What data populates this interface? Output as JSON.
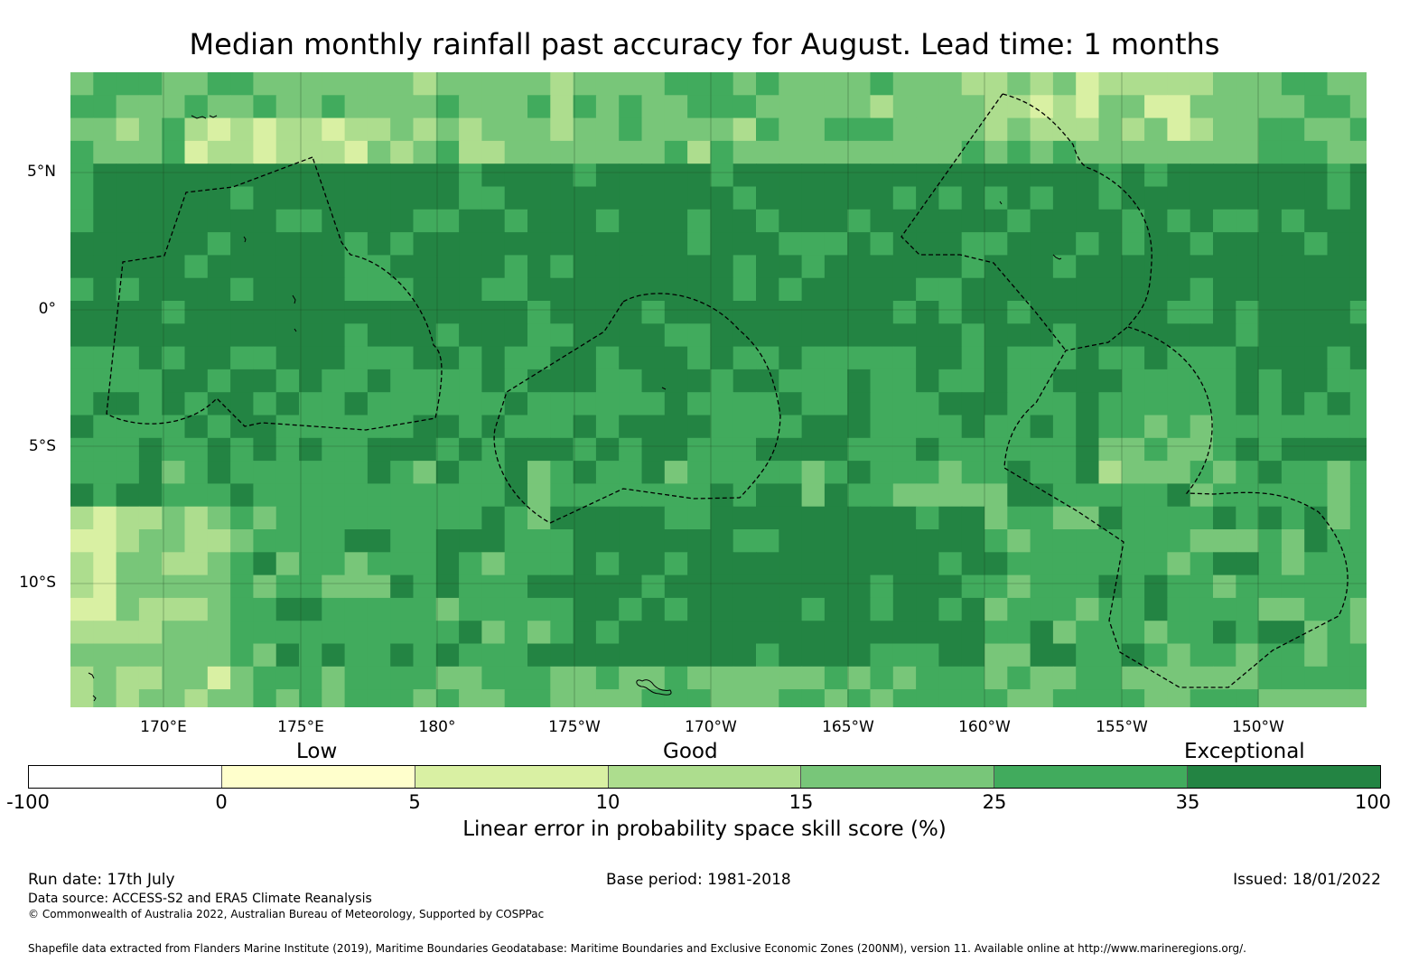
{
  "title": "Median monthly rainfall past accuracy for August. Lead time: 1 months",
  "colors": {
    "bins": [
      "#ffffff",
      "#ffffcc",
      "#d9f0a3",
      "#addd8e",
      "#78c679",
      "#41ab5d",
      "#238443"
    ],
    "border": "#000000"
  },
  "map": {
    "lat_ticks": [
      "5°N",
      "0°",
      "5°S",
      "10°S"
    ],
    "lon_ticks": [
      "170°E",
      "175°E",
      "180°",
      "175°W",
      "170°W",
      "165°W",
      "160°W",
      "155°W",
      "150°W"
    ],
    "lon_range": [
      166.6,
      213.9
    ],
    "lat_range": [
      -14.3,
      8.8
    ],
    "grid_resolution_deg": 0.83,
    "dominant_category": "Exceptional",
    "eez_outlines": [
      "Kiribati (Gilbert Islands)",
      "Kiribati (Phoenix Islands)",
      "Kiribati (Line Islands)",
      "Cook Islands",
      "French Polynesia"
    ]
  },
  "legend": {
    "categories": [
      "Low",
      "Good",
      "Exceptional"
    ],
    "bounds": [
      "-100",
      "0",
      "5",
      "10",
      "15",
      "25",
      "35",
      "100"
    ],
    "title": "Linear error in probability space skill score (%)"
  },
  "footer": {
    "run_date": "Run date: 17th July",
    "base_period": "Base period: 1981-2018",
    "issued": "Issued: 18/01/2022",
    "data_source": "Data source: ACCESS-S2 and ERA5 Climate Reanalysis",
    "copyright": "© Commonwealth of Australia 2022, Australian Bureau of Meteorology, Supported by COSPPac",
    "shapefile": "Shapefile data extracted from Flanders Marine Institute (2019), Maritime Boundaries Geodatabase: Maritime Boundaries and Exclusive Economic Zones (200NM), version 11. Available online at http://www.marineregions.org/."
  }
}
